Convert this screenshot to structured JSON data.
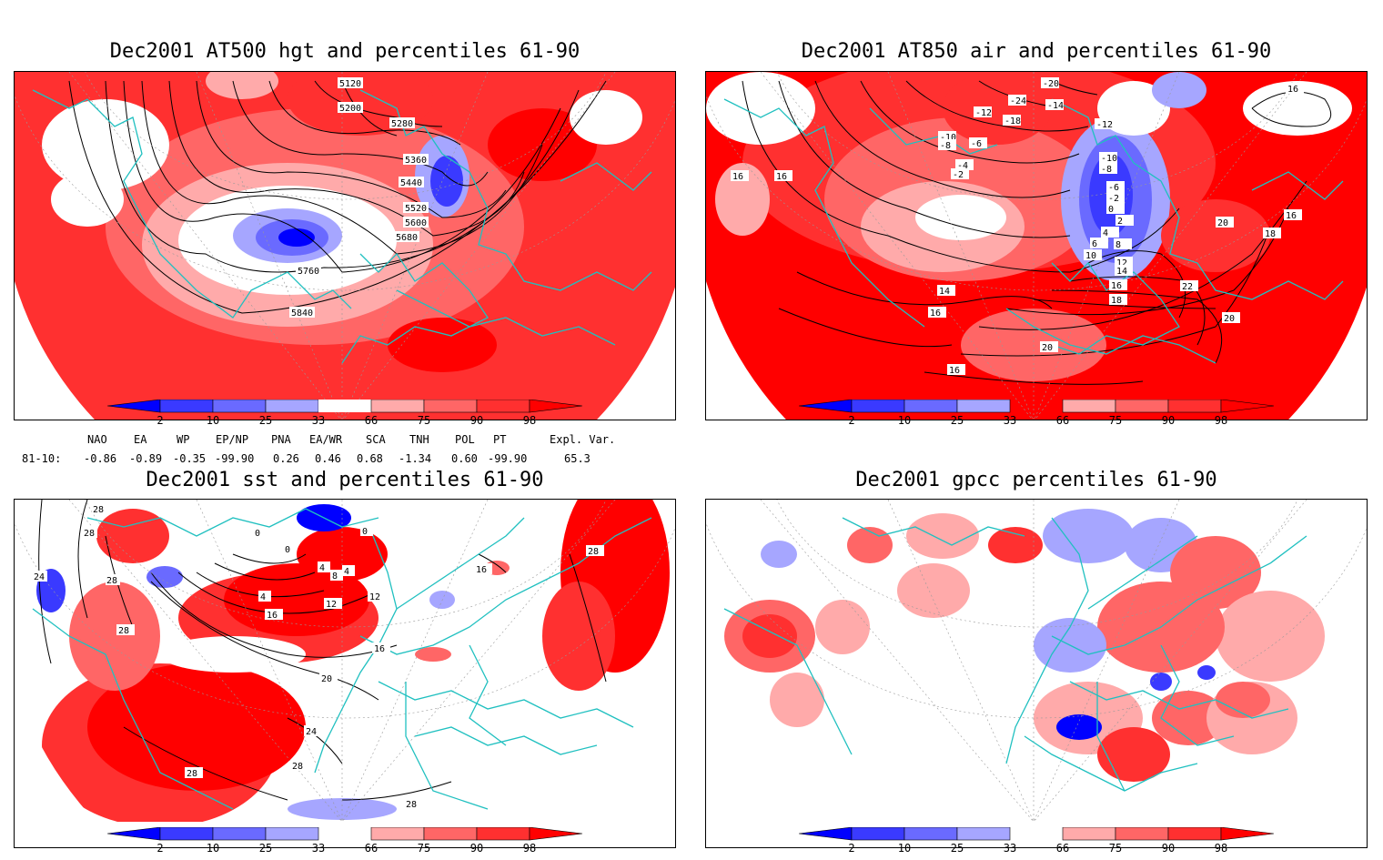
{
  "panels": [
    {
      "title": "Dec2001 AT500 hgt and percentiles 61-90",
      "contour_labels": [
        "5120",
        "5200",
        "5280",
        "5360",
        "5440",
        "5520",
        "5600",
        "5680",
        "5760",
        "5840"
      ]
    },
    {
      "title": "Dec2001 AT850 air and percentiles 61-90",
      "contour_labels": [
        "-20",
        "-24",
        "-12",
        "-14",
        "-18",
        "-12",
        "-10",
        "-8",
        "-6",
        "-4",
        "-2",
        "-10",
        "-8",
        "-6",
        "-2",
        "0",
        "2",
        "4",
        "6",
        "8",
        "10",
        "12",
        "14",
        "16",
        "18",
        "20",
        "22",
        "20",
        "16",
        "14",
        "16",
        "16",
        "18",
        "20",
        "16",
        "16",
        "16"
      ]
    },
    {
      "title": "Dec2001 sst and percentiles 61-90",
      "contour_labels": [
        "28",
        "24",
        "28",
        "28",
        "0",
        "0",
        "0",
        "4",
        "8",
        "4",
        "8",
        "4",
        "12",
        "16",
        "16",
        "20",
        "24",
        "28",
        "28",
        "28",
        "28",
        "28",
        "16",
        "12"
      ]
    },
    {
      "title": "Dec2001 gpcc percentiles 61-90",
      "contour_labels": []
    }
  ],
  "colorbar": {
    "labels": [
      "2",
      "10",
      "25",
      "33",
      "66",
      "75",
      "90",
      "98"
    ],
    "colors": [
      "#0000ff",
      "#3a3aff",
      "#6a6aff",
      "#a6a6ff",
      "#ffffff",
      "#ffaaaa",
      "#ff6666",
      "#ff3030",
      "#ff0000"
    ]
  },
  "indices": {
    "headers": [
      "NAO",
      "EA",
      "WP",
      "EP/NP",
      "PNA",
      "EA/WR",
      "SCA",
      "TNH",
      "POL",
      "PT",
      "Expl. Var."
    ],
    "row_label": "81-10:",
    "values": [
      "-0.86",
      "-0.89",
      "-0.35",
      "-99.90",
      "0.26",
      "0.46",
      "0.68",
      "-1.34",
      "0.60",
      "-99.90",
      "65.3"
    ]
  },
  "colors": {
    "coast": "#20c0c0",
    "contour": "#000000",
    "grid": "#999999"
  }
}
